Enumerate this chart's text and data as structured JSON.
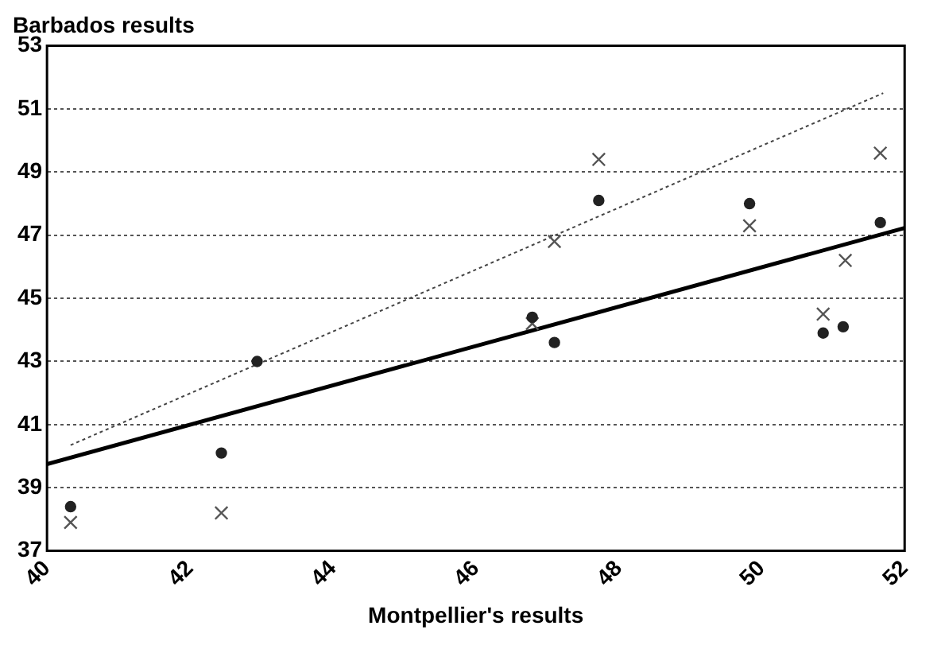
{
  "chart_data": {
    "type": "scatter",
    "title": "Barbados results",
    "xlabel": "Montpellier's results",
    "xlim": [
      40,
      52
    ],
    "xticks": [
      40,
      42,
      44,
      46,
      48,
      50,
      52
    ],
    "ylim": [
      37,
      53
    ],
    "yticks": [
      37,
      39,
      41,
      43,
      45,
      47,
      49,
      51,
      53
    ],
    "grid": "y",
    "series": [
      {
        "type": "scatter",
        "color": "#222222",
        "marker": "circle",
        "x": [
          40.33,
          42.44,
          42.94,
          46.79,
          47.1,
          47.72,
          49.83,
          50.86,
          51.14,
          51.66
        ],
        "values": [
          38.4,
          40.1,
          43.0,
          44.4,
          43.6,
          48.1,
          48.0,
          43.9,
          44.1,
          47.4
        ]
      },
      {
        "type": "scatter",
        "color": "#555555",
        "marker": "cross",
        "x": [
          40.33,
          42.44,
          42.94,
          46.79,
          47.1,
          47.72,
          49.83,
          50.86,
          51.17,
          51.66
        ],
        "values": [
          37.9,
          38.2,
          null,
          44.2,
          46.8,
          49.4,
          47.3,
          44.5,
          46.2,
          49.6
        ]
      },
      {
        "type": "line",
        "color": "#000000",
        "line_style": "solid",
        "x": [
          40,
          52
        ],
        "values": [
          39.75,
          47.23
        ]
      },
      {
        "type": "line",
        "color": "#444444",
        "line_style": "dotted",
        "x": [
          40.33,
          51.7
        ],
        "values": [
          40.35,
          51.5
        ]
      }
    ]
  }
}
